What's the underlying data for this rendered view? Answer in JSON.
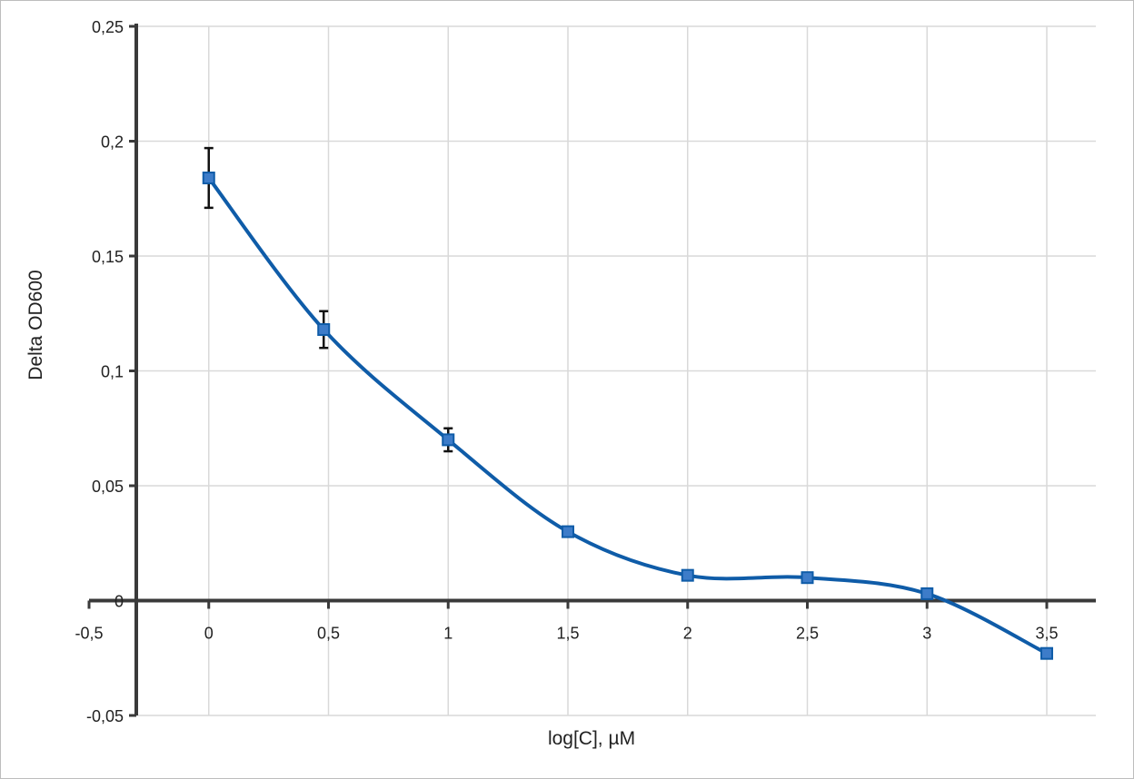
{
  "chart_data": {
    "type": "line",
    "title": "",
    "xlabel": "log[C], µM",
    "ylabel": "Delta OD600",
    "xlim": [
      -0.5,
      3.5
    ],
    "ylim": [
      -0.05,
      0.25
    ],
    "x_ticks": [
      -0.5,
      0,
      0.5,
      1,
      1.5,
      2,
      2.5,
      3,
      3.5
    ],
    "x_tick_labels": [
      "-0,5",
      "0",
      "0,5",
      "1",
      "1,5",
      "2",
      "2,5",
      "3",
      "3,5"
    ],
    "y_ticks": [
      -0.05,
      0,
      0.05,
      0.1,
      0.15,
      0.2,
      0.25
    ],
    "y_tick_labels": [
      "-0,05",
      "0",
      "0,05",
      "0,1",
      "0,15",
      "0,2",
      "0,25"
    ],
    "grid": true,
    "smooth": true,
    "series": [
      {
        "color": "#0f5ca8",
        "marker": "square",
        "x": [
          0,
          0.48,
          1,
          1.5,
          2,
          2.5,
          3,
          3.5
        ],
        "y": [
          0.184,
          0.118,
          0.07,
          0.03,
          0.011,
          0.01,
          0.003,
          -0.023
        ],
        "error": [
          0.013,
          0.008,
          0.005,
          0.002,
          0.001,
          0.001,
          0.001,
          0.001
        ]
      }
    ]
  }
}
